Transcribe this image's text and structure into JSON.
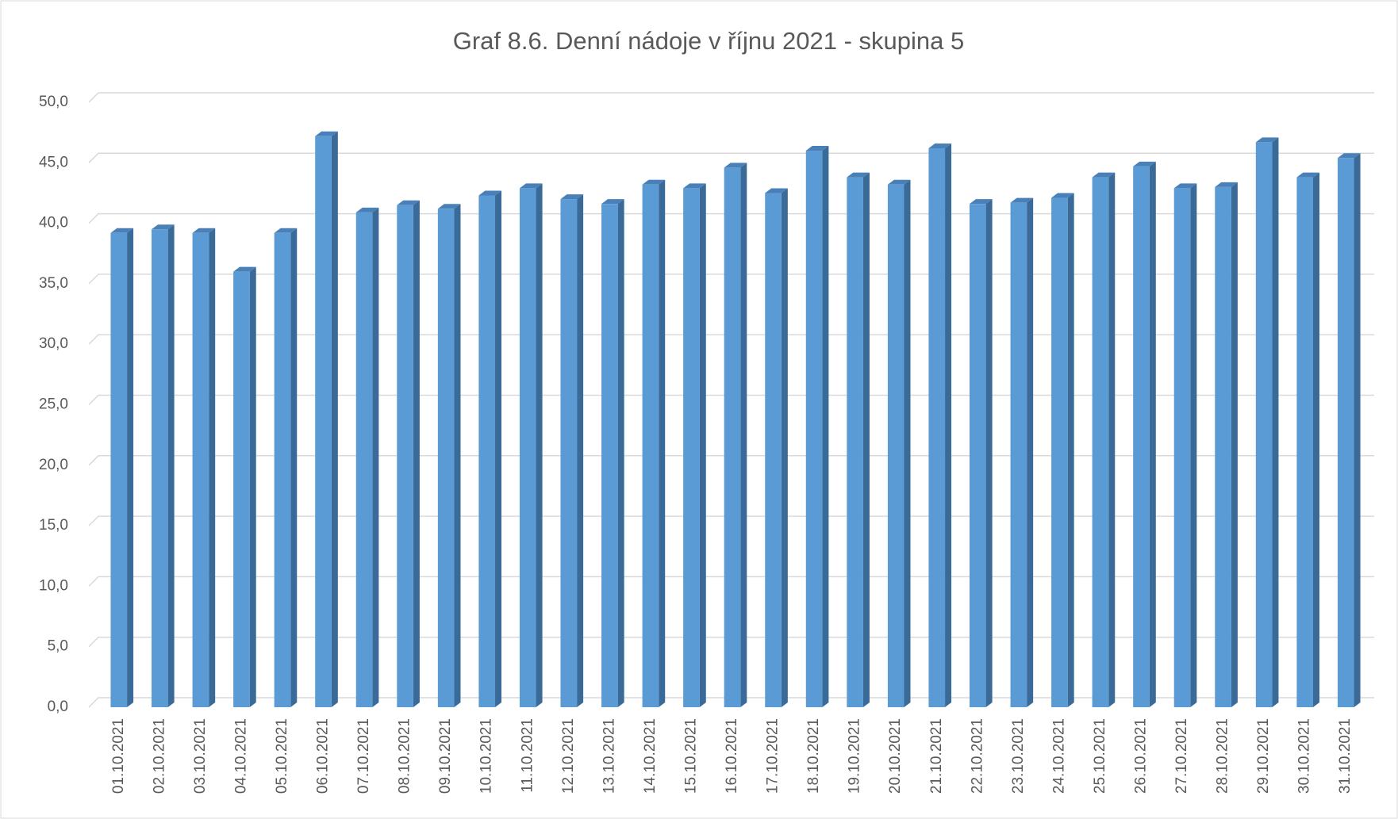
{
  "chart_data": {
    "type": "bar",
    "title": "Graf 8.6. Denní nádoje v říjnu 2021 - skupina 5",
    "categories": [
      "01.10.2021",
      "02.10.2021",
      "03.10.2021",
      "04.10.2021",
      "05.10.2021",
      "06.10.2021",
      "07.10.2021",
      "08.10.2021",
      "09.10.2021",
      "10.10.2021",
      "11.10.2021",
      "12.10.2021",
      "13.10.2021",
      "14.10.2021",
      "15.10.2021",
      "16.10.2021",
      "17.10.2021",
      "18.10.2021",
      "19.10.2021",
      "20.10.2021",
      "21.10.2021",
      "22.10.2021",
      "23.10.2021",
      "24.10.2021",
      "25.10.2021",
      "26.10.2021",
      "27.10.2021",
      "28.10.2021",
      "29.10.2021",
      "30.10.2021",
      "31.10.2021"
    ],
    "values": [
      39.2,
      39.5,
      39.2,
      36.0,
      39.2,
      47.2,
      40.9,
      41.5,
      41.2,
      42.3,
      42.9,
      42.0,
      41.6,
      43.2,
      42.9,
      44.6,
      42.5,
      46.0,
      43.8,
      43.2,
      46.2,
      41.6,
      41.7,
      42.1,
      43.8,
      44.7,
      42.9,
      43.0,
      46.7,
      43.8,
      45.4
    ],
    "color": "#5b9bd5",
    "ylim": [
      0,
      50
    ],
    "yticks": [
      {
        "value": 0,
        "label": "0,0"
      },
      {
        "value": 5,
        "label": "5,0"
      },
      {
        "value": 10,
        "label": "10,0"
      },
      {
        "value": 15,
        "label": "15,0"
      },
      {
        "value": 20,
        "label": "20,0"
      },
      {
        "value": 25,
        "label": "25,0"
      },
      {
        "value": 30,
        "label": "30,0"
      },
      {
        "value": 35,
        "label": "35,0"
      },
      {
        "value": 40,
        "label": "40,0"
      },
      {
        "value": 45,
        "label": "45,0"
      },
      {
        "value": 50,
        "label": "50,0"
      }
    ],
    "grid": true
  }
}
